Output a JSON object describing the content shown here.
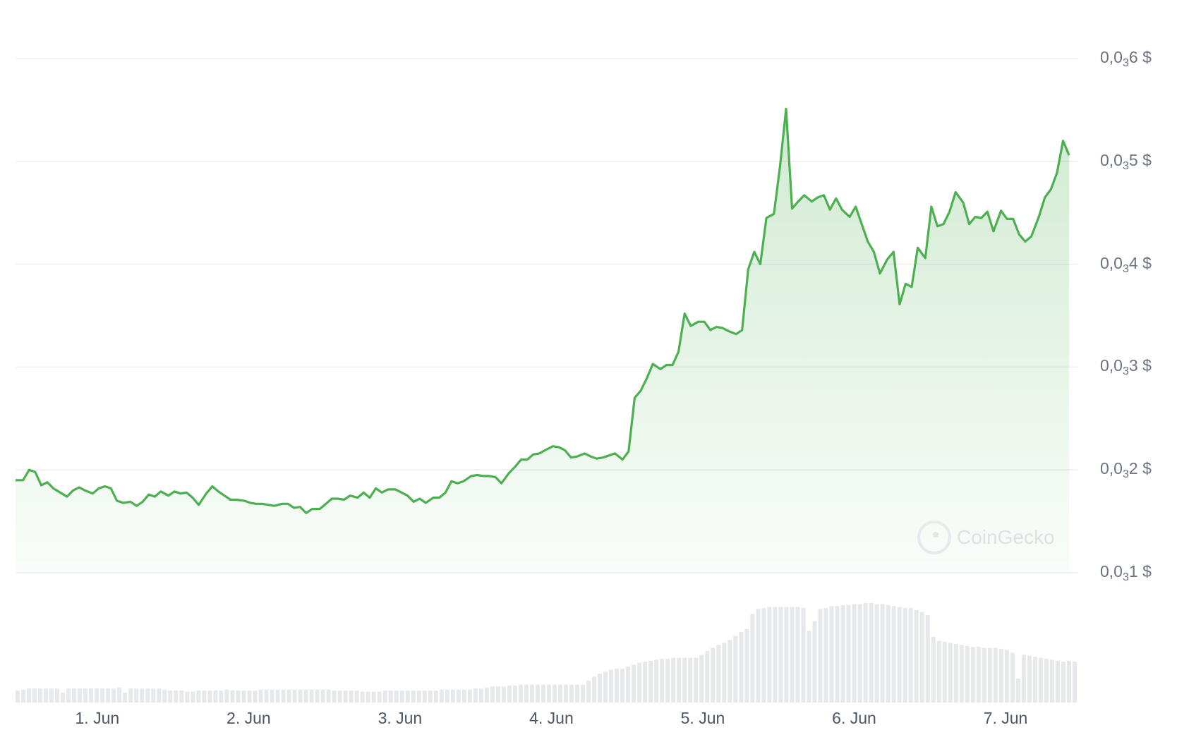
{
  "chart_data": {
    "type": "area",
    "title": "",
    "xlabel": "",
    "ylabel": "",
    "y_axis_position": "right",
    "grid": true,
    "ylim": [
      1e-05,
      6e-05
    ],
    "y_ticks": [
      {
        "value": 6e-05,
        "pre": "0,0",
        "sub": "3",
        "post": "6 $"
      },
      {
        "value": 5e-05,
        "pre": "0,0",
        "sub": "3",
        "post": "5 $"
      },
      {
        "value": 4e-05,
        "pre": "0,0",
        "sub": "3",
        "post": "4 $"
      },
      {
        "value": 3e-05,
        "pre": "0,0",
        "sub": "3",
        "post": "3 $"
      },
      {
        "value": 2e-05,
        "pre": "0,0",
        "sub": "3",
        "post": "2 $"
      },
      {
        "value": 1e-05,
        "pre": "0,0",
        "sub": "3",
        "post": "1 $"
      }
    ],
    "x_ticks": [
      {
        "value": 1,
        "label": "1. Jun"
      },
      {
        "value": 2,
        "label": "2. Jun"
      },
      {
        "value": 3,
        "label": "3. Jun"
      },
      {
        "value": 4,
        "label": "4. Jun"
      },
      {
        "value": 5,
        "label": "5. Jun"
      },
      {
        "value": 6,
        "label": "6. Jun"
      },
      {
        "value": 7,
        "label": "7. Jun"
      }
    ],
    "xlim": [
      0.46,
      7.48
    ],
    "price_series": {
      "x_unit": "days (1 = 1. Jun)",
      "color": "#4caf50",
      "points": [
        [
          0.46,
          1.9e-05
        ],
        [
          0.51,
          1.9e-05
        ],
        [
          0.55,
          2e-05
        ],
        [
          0.59,
          1.98e-05
        ],
        [
          0.63,
          1.85e-05
        ],
        [
          0.67,
          1.88e-05
        ],
        [
          0.71,
          1.82e-05
        ],
        [
          0.8,
          1.74e-05
        ],
        [
          0.84,
          1.8e-05
        ],
        [
          0.88,
          1.83e-05
        ],
        [
          0.92,
          1.8e-05
        ],
        [
          0.97,
          1.77e-05
        ],
        [
          1.01,
          1.82e-05
        ],
        [
          1.05,
          1.84e-05
        ],
        [
          1.09,
          1.82e-05
        ],
        [
          1.13,
          1.7e-05
        ],
        [
          1.17,
          1.68e-05
        ],
        [
          1.22,
          1.69e-05
        ],
        [
          1.26,
          1.65e-05
        ],
        [
          1.3,
          1.69e-05
        ],
        [
          1.34,
          1.76e-05
        ],
        [
          1.38,
          1.74e-05
        ],
        [
          1.42,
          1.79e-05
        ],
        [
          1.47,
          1.75e-05
        ],
        [
          1.51,
          1.79e-05
        ],
        [
          1.55,
          1.77e-05
        ],
        [
          1.59,
          1.78e-05
        ],
        [
          1.63,
          1.73e-05
        ],
        [
          1.67,
          1.66e-05
        ],
        [
          1.72,
          1.77e-05
        ],
        [
          1.76,
          1.84e-05
        ],
        [
          1.8,
          1.79e-05
        ],
        [
          1.84,
          1.75e-05
        ],
        [
          1.88,
          1.71e-05
        ],
        [
          1.92,
          1.71e-05
        ],
        [
          1.97,
          1.7e-05
        ],
        [
          2.01,
          1.68e-05
        ],
        [
          2.05,
          1.67e-05
        ],
        [
          2.09,
          1.67e-05
        ],
        [
          2.13,
          1.66e-05
        ],
        [
          2.17,
          1.65e-05
        ],
        [
          2.22,
          1.67e-05
        ],
        [
          2.26,
          1.67e-05
        ],
        [
          2.3,
          1.63e-05
        ],
        [
          2.34,
          1.64e-05
        ],
        [
          2.38,
          1.58e-05
        ],
        [
          2.42,
          1.62e-05
        ],
        [
          2.47,
          1.62e-05
        ],
        [
          2.51,
          1.67e-05
        ],
        [
          2.55,
          1.72e-05
        ],
        [
          2.59,
          1.72e-05
        ],
        [
          2.63,
          1.71e-05
        ],
        [
          2.67,
          1.75e-05
        ],
        [
          2.72,
          1.73e-05
        ],
        [
          2.76,
          1.78e-05
        ],
        [
          2.8,
          1.73e-05
        ],
        [
          2.84,
          1.82e-05
        ],
        [
          2.88,
          1.78e-05
        ],
        [
          2.92,
          1.81e-05
        ],
        [
          2.97,
          1.81e-05
        ],
        [
          3.01,
          1.78e-05
        ],
        [
          3.05,
          1.75e-05
        ],
        [
          3.09,
          1.69e-05
        ],
        [
          3.13,
          1.72e-05
        ],
        [
          3.17,
          1.68e-05
        ],
        [
          3.22,
          1.73e-05
        ],
        [
          3.26,
          1.73e-05
        ],
        [
          3.3,
          1.78e-05
        ],
        [
          3.34,
          1.89e-05
        ],
        [
          3.38,
          1.87e-05
        ],
        [
          3.42,
          1.89e-05
        ],
        [
          3.47,
          1.94e-05
        ],
        [
          3.51,
          1.95e-05
        ],
        [
          3.55,
          1.94e-05
        ],
        [
          3.59,
          1.94e-05
        ],
        [
          3.63,
          1.93e-05
        ],
        [
          3.67,
          1.87e-05
        ],
        [
          3.72,
          1.97e-05
        ],
        [
          3.76,
          2.03e-05
        ],
        [
          3.8,
          2.1e-05
        ],
        [
          3.84,
          2.1e-05
        ],
        [
          3.88,
          2.15e-05
        ],
        [
          3.92,
          2.16e-05
        ],
        [
          3.97,
          2.2e-05
        ],
        [
          4.01,
          2.23e-05
        ],
        [
          4.05,
          2.22e-05
        ],
        [
          4.09,
          2.19e-05
        ],
        [
          4.13,
          2.12e-05
        ],
        [
          4.17,
          2.13e-05
        ],
        [
          4.22,
          2.16e-05
        ],
        [
          4.26,
          2.13e-05
        ],
        [
          4.3,
          2.11e-05
        ],
        [
          4.34,
          2.12e-05
        ],
        [
          4.38,
          2.14e-05
        ],
        [
          4.42,
          2.16e-05
        ],
        [
          4.47,
          2.1e-05
        ],
        [
          4.51,
          2.18e-05
        ],
        [
          4.55,
          2.7e-05
        ],
        [
          4.59,
          2.77e-05
        ],
        [
          4.63,
          2.89e-05
        ],
        [
          4.67,
          3.03e-05
        ],
        [
          4.72,
          2.98e-05
        ],
        [
          4.76,
          3.02e-05
        ],
        [
          4.8,
          3.02e-05
        ],
        [
          4.84,
          3.15e-05
        ],
        [
          4.88,
          3.52e-05
        ],
        [
          4.92,
          3.4e-05
        ],
        [
          4.97,
          3.44e-05
        ],
        [
          5.01,
          3.44e-05
        ],
        [
          5.05,
          3.36e-05
        ],
        [
          5.09,
          3.39e-05
        ],
        [
          5.13,
          3.38e-05
        ],
        [
          5.17,
          3.35e-05
        ],
        [
          5.22,
          3.32e-05
        ],
        [
          5.26,
          3.36e-05
        ],
        [
          5.3,
          3.95e-05
        ],
        [
          5.34,
          4.12e-05
        ],
        [
          5.38,
          4e-05
        ],
        [
          5.42,
          4.45e-05
        ],
        [
          5.47,
          4.49e-05
        ],
        [
          5.51,
          4.95e-05
        ],
        [
          5.55,
          5.51e-05
        ],
        [
          5.59,
          4.54e-05
        ],
        [
          5.63,
          4.61e-05
        ],
        [
          5.67,
          4.67e-05
        ],
        [
          5.72,
          4.61e-05
        ],
        [
          5.76,
          4.65e-05
        ],
        [
          5.8,
          4.67e-05
        ],
        [
          5.84,
          4.53e-05
        ],
        [
          5.88,
          4.64e-05
        ],
        [
          5.92,
          4.53e-05
        ],
        [
          5.97,
          4.46e-05
        ],
        [
          6.01,
          4.56e-05
        ],
        [
          6.05,
          4.39e-05
        ],
        [
          6.09,
          4.22e-05
        ],
        [
          6.13,
          4.12e-05
        ],
        [
          6.17,
          3.91e-05
        ],
        [
          6.22,
          4.05e-05
        ],
        [
          6.26,
          4.12e-05
        ],
        [
          6.3,
          3.61e-05
        ],
        [
          6.34,
          3.81e-05
        ],
        [
          6.38,
          3.78e-05
        ],
        [
          6.42,
          4.16e-05
        ],
        [
          6.47,
          4.06e-05
        ],
        [
          6.51,
          4.56e-05
        ],
        [
          6.55,
          4.37e-05
        ],
        [
          6.59,
          4.39e-05
        ],
        [
          6.63,
          4.51e-05
        ],
        [
          6.67,
          4.7e-05
        ],
        [
          6.72,
          4.6e-05
        ],
        [
          6.76,
          4.39e-05
        ],
        [
          6.8,
          4.46e-05
        ],
        [
          6.84,
          4.45e-05
        ],
        [
          6.88,
          4.51e-05
        ],
        [
          6.92,
          4.32e-05
        ],
        [
          6.97,
          4.52e-05
        ],
        [
          7.01,
          4.44e-05
        ],
        [
          7.05,
          4.44e-05
        ],
        [
          7.09,
          4.29e-05
        ],
        [
          7.13,
          4.22e-05
        ],
        [
          7.17,
          4.27e-05
        ],
        [
          7.22,
          4.46e-05
        ],
        [
          7.26,
          4.65e-05
        ],
        [
          7.3,
          4.73e-05
        ],
        [
          7.34,
          4.89e-05
        ],
        [
          7.38,
          5.2e-05
        ],
        [
          7.42,
          5.06e-05
        ]
      ]
    },
    "volume_series": {
      "unit": "relative to max",
      "color": "#e6e8ec",
      "values": [
        0.12,
        0.13,
        0.14,
        0.14,
        0.14,
        0.14,
        0.14,
        0.14,
        0.1,
        0.14,
        0.14,
        0.14,
        0.14,
        0.14,
        0.14,
        0.14,
        0.14,
        0.14,
        0.15,
        0.1,
        0.14,
        0.14,
        0.14,
        0.14,
        0.14,
        0.14,
        0.13,
        0.12,
        0.12,
        0.12,
        0.11,
        0.11,
        0.12,
        0.12,
        0.12,
        0.12,
        0.12,
        0.13,
        0.12,
        0.12,
        0.12,
        0.12,
        0.12,
        0.13,
        0.13,
        0.13,
        0.13,
        0.13,
        0.13,
        0.13,
        0.13,
        0.13,
        0.13,
        0.13,
        0.13,
        0.13,
        0.12,
        0.12,
        0.12,
        0.12,
        0.12,
        0.11,
        0.11,
        0.11,
        0.11,
        0.12,
        0.12,
        0.12,
        0.12,
        0.12,
        0.12,
        0.12,
        0.12,
        0.12,
        0.12,
        0.13,
        0.13,
        0.13,
        0.13,
        0.13,
        0.13,
        0.14,
        0.14,
        0.15,
        0.16,
        0.16,
        0.16,
        0.17,
        0.17,
        0.18,
        0.18,
        0.18,
        0.18,
        0.18,
        0.18,
        0.18,
        0.18,
        0.18,
        0.18,
        0.18,
        0.18,
        0.22,
        0.26,
        0.29,
        0.31,
        0.33,
        0.34,
        0.34,
        0.36,
        0.38,
        0.4,
        0.41,
        0.42,
        0.43,
        0.44,
        0.44,
        0.45,
        0.45,
        0.45,
        0.45,
        0.45,
        0.48,
        0.52,
        0.55,
        0.58,
        0.6,
        0.63,
        0.67,
        0.71,
        0.74,
        0.89,
        0.94,
        0.95,
        0.96,
        0.96,
        0.96,
        0.96,
        0.96,
        0.96,
        0.95,
        0.72,
        0.82,
        0.94,
        0.95,
        0.97,
        0.97,
        0.98,
        0.98,
        0.99,
        0.99,
        1.0,
        1.0,
        0.99,
        0.99,
        0.98,
        0.97,
        0.96,
        0.95,
        0.95,
        0.93,
        0.91,
        0.88,
        0.66,
        0.62,
        0.61,
        0.6,
        0.59,
        0.58,
        0.57,
        0.56,
        0.56,
        0.55,
        0.55,
        0.55,
        0.54,
        0.53,
        0.5,
        0.24,
        0.48,
        0.47,
        0.46,
        0.45,
        0.44,
        0.43,
        0.42,
        0.41,
        0.42,
        0.41
      ]
    }
  },
  "watermark": "CoinGecko"
}
